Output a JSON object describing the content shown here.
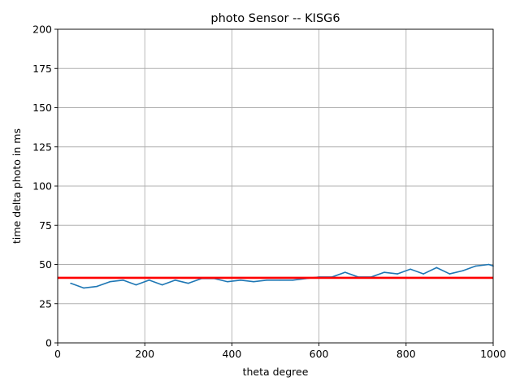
{
  "chart_data": {
    "type": "line",
    "title": "photo Sensor  --  KISG6",
    "xlabel": "theta degree",
    "ylabel": "time delta photo in ms",
    "xlim": [
      0,
      1000
    ],
    "ylim": [
      0,
      200
    ],
    "xticks": [
      0,
      200,
      400,
      600,
      800,
      1000
    ],
    "yticks": [
      0,
      25,
      50,
      75,
      100,
      125,
      150,
      175,
      200
    ],
    "grid": true,
    "series": [
      {
        "color": "#1f77b4",
        "x": [
          30,
          60,
          90,
          120,
          150,
          180,
          210,
          240,
          270,
          300,
          330,
          360,
          390,
          420,
          450,
          480,
          510,
          540,
          570,
          600,
          630,
          660,
          690,
          720,
          750,
          780,
          810,
          840,
          870,
          900,
          930,
          960,
          990,
          1000
        ],
        "y": [
          38,
          35,
          36,
          39,
          40,
          37,
          40,
          37,
          40,
          38,
          41,
          41,
          39,
          40,
          39,
          40,
          40,
          40,
          41,
          42,
          42,
          45,
          42,
          42,
          45,
          44,
          47,
          44,
          48,
          44,
          46,
          49,
          50,
          49
        ]
      }
    ],
    "reference_line": {
      "y": 41.5,
      "color": "#ff0000"
    }
  }
}
